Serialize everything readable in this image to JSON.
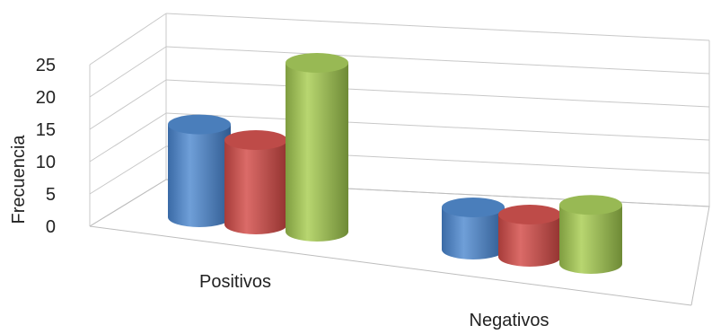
{
  "chart_data": {
    "type": "bar",
    "style": "3d-cylinder",
    "categories": [
      "Positivos",
      "Negativos"
    ],
    "series": [
      {
        "values": [
          11,
          5
        ],
        "color": "#4a7ebb"
      },
      {
        "values": [
          10,
          5
        ],
        "color": "#be4b48"
      },
      {
        "values": [
          20,
          7
        ],
        "color": "#98b954"
      }
    ],
    "ylabel": "Frecuencia",
    "xlabel": "",
    "title": "",
    "yticks": [
      0,
      5,
      10,
      15,
      20,
      25
    ],
    "ylim": [
      0,
      25
    ],
    "grid": true,
    "legend": "none"
  }
}
